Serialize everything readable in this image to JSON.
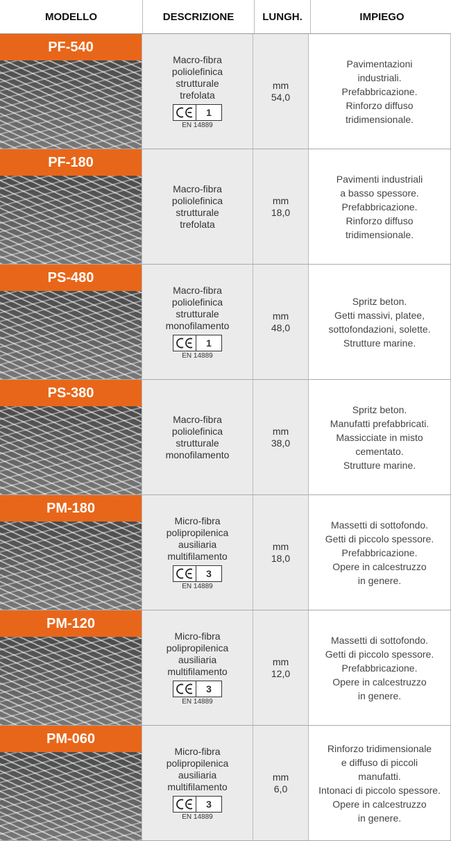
{
  "header": {
    "columns": [
      "MODELLO",
      "DESCRIZIONE",
      "LUNGH.",
      "IMPIEGO"
    ]
  },
  "table": {
    "rows": [
      {
        "model": "PF-540",
        "description": [
          "Macro-fibra",
          "poliolefinica",
          "strutturale",
          "trefolata"
        ],
        "ce": {
          "class": "1",
          "standard": "EN 14889"
        },
        "length": {
          "unit": "mm",
          "value": "54,0"
        },
        "usage": [
          "Pavimentazioni",
          "industriali.",
          "Prefabbricazione.",
          "Rinforzo diffuso",
          "tridimensionale."
        ]
      },
      {
        "model": "PF-180",
        "description": [
          "Macro-fibra",
          "poliolefinica",
          "strutturale",
          "trefolata"
        ],
        "length": {
          "unit": "mm",
          "value": "18,0"
        },
        "usage": [
          "Pavimenti industriali",
          "a basso spessore.",
          "Prefabbricazione.",
          "Rinforzo diffuso",
          "tridimensionale."
        ]
      },
      {
        "model": "PS-480",
        "description": [
          "Macro-fibra",
          "poliolefinica",
          "strutturale",
          "monofilamento"
        ],
        "ce": {
          "class": "1",
          "standard": "EN 14889"
        },
        "length": {
          "unit": "mm",
          "value": "48,0"
        },
        "usage": [
          "Spritz beton.",
          "Getti massivi, platee,",
          "sottofondazioni, solette.",
          "Strutture marine."
        ]
      },
      {
        "model": "PS-380",
        "description": [
          "Macro-fibra",
          "poliolefinica",
          "strutturale",
          "monofilamento"
        ],
        "length": {
          "unit": "mm",
          "value": "38,0"
        },
        "usage": [
          "Spritz beton.",
          "Manufatti prefabbricati.",
          "Massicciate in misto",
          "cementato.",
          "Strutture marine."
        ]
      },
      {
        "model": "PM-180",
        "description": [
          "Micro-fibra",
          "polipropilenica",
          "ausiliaria",
          "multifilamento"
        ],
        "ce": {
          "class": "3",
          "standard": "EN 14889"
        },
        "length": {
          "unit": "mm",
          "value": "18,0"
        },
        "usage": [
          "Massetti di sottofondo.",
          "Getti di piccolo spessore.",
          "Prefabbricazione.",
          "Opere in calcestruzzo",
          "in genere."
        ]
      },
      {
        "model": "PM-120",
        "description": [
          "Micro-fibra",
          "polipropilenica",
          "ausiliaria",
          "multifilamento"
        ],
        "ce": {
          "class": "3",
          "standard": "EN 14889"
        },
        "length": {
          "unit": "mm",
          "value": "12,0"
        },
        "usage": [
          "Massetti di sottofondo.",
          "Getti di piccolo spessore.",
          "Prefabbricazione.",
          "Opere in calcestruzzo",
          "in genere."
        ]
      },
      {
        "model": "PM-060",
        "description": [
          "Micro-fibra",
          "polipropilenica",
          "ausiliaria",
          "multifilamento"
        ],
        "ce": {
          "class": "3",
          "standard": "EN 14889"
        },
        "length": {
          "unit": "mm",
          "value": "6,0"
        },
        "usage": [
          "Rinforzo tridimensionale",
          "e diffuso di piccoli",
          "manufatti.",
          "Intonaci di piccolo spessore.",
          "Opere in calcestruzzo",
          "in genere."
        ]
      }
    ]
  }
}
